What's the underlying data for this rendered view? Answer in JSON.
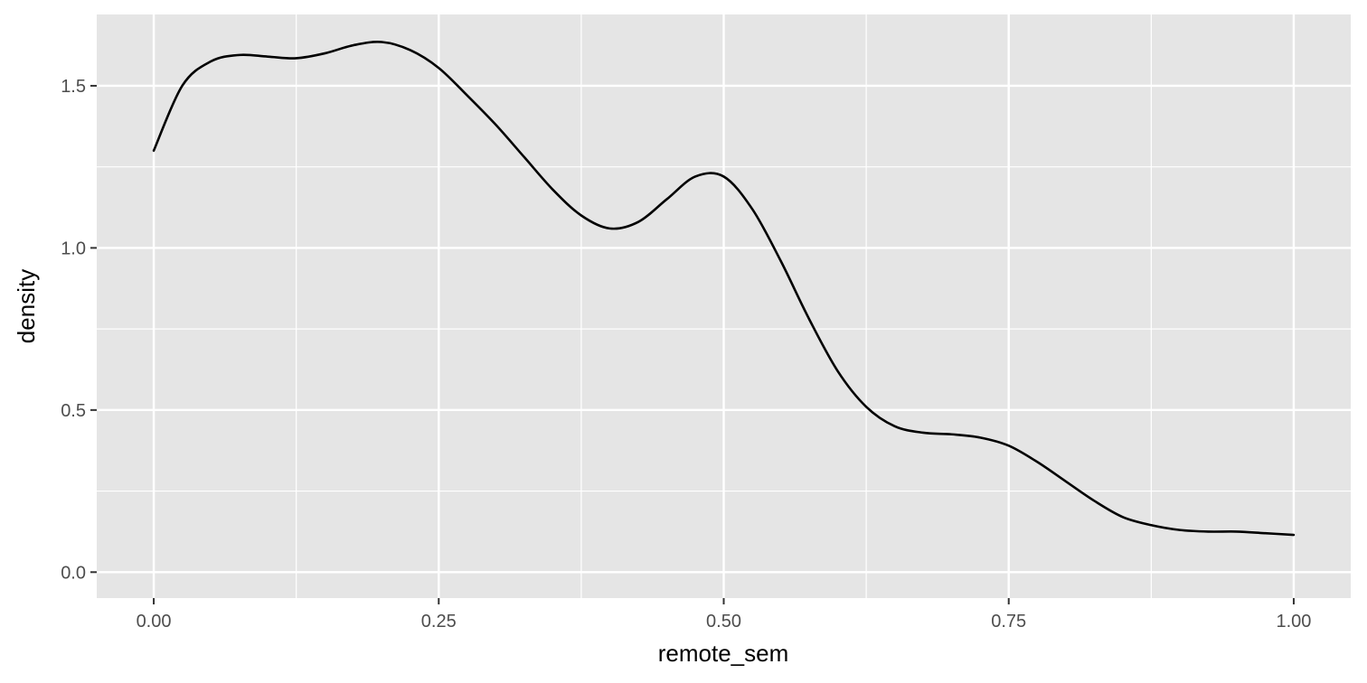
{
  "chart_data": {
    "type": "line",
    "xlabel": "remote_sem",
    "ylabel": "density",
    "xlim": [
      -0.05,
      1.05
    ],
    "ylim": [
      -0.08,
      1.72
    ],
    "x_ticks": [
      0.0,
      0.25,
      0.5,
      0.75,
      1.0
    ],
    "x_tick_labels": [
      "0.00",
      "0.25",
      "0.50",
      "0.75",
      "1.00"
    ],
    "y_ticks": [
      0.0,
      0.5,
      1.0,
      1.5
    ],
    "y_tick_labels": [
      "0.0",
      "0.5",
      "1.0",
      "1.5"
    ],
    "grid": true,
    "panel_background": "#e5e5e5",
    "grid_color": "#ffffff",
    "line_color": "#000000",
    "series": [
      {
        "x": [
          0.0,
          0.025,
          0.05,
          0.075,
          0.1,
          0.125,
          0.15,
          0.175,
          0.2,
          0.225,
          0.25,
          0.275,
          0.3,
          0.325,
          0.35,
          0.375,
          0.4,
          0.425,
          0.45,
          0.475,
          0.5,
          0.525,
          0.55,
          0.575,
          0.6,
          0.625,
          0.65,
          0.675,
          0.7,
          0.725,
          0.75,
          0.775,
          0.8,
          0.825,
          0.85,
          0.875,
          0.9,
          0.925,
          0.95,
          0.975,
          1.0
        ],
        "y": [
          1.3,
          1.5,
          1.575,
          1.595,
          1.59,
          1.585,
          1.6,
          1.625,
          1.635,
          1.61,
          1.555,
          1.47,
          1.38,
          1.28,
          1.18,
          1.1,
          1.06,
          1.08,
          1.15,
          1.22,
          1.22,
          1.12,
          0.96,
          0.78,
          0.62,
          0.51,
          0.45,
          0.43,
          0.425,
          0.415,
          0.39,
          0.34,
          0.28,
          0.22,
          0.17,
          0.145,
          0.13,
          0.125,
          0.125,
          0.12,
          0.115
        ]
      }
    ]
  }
}
